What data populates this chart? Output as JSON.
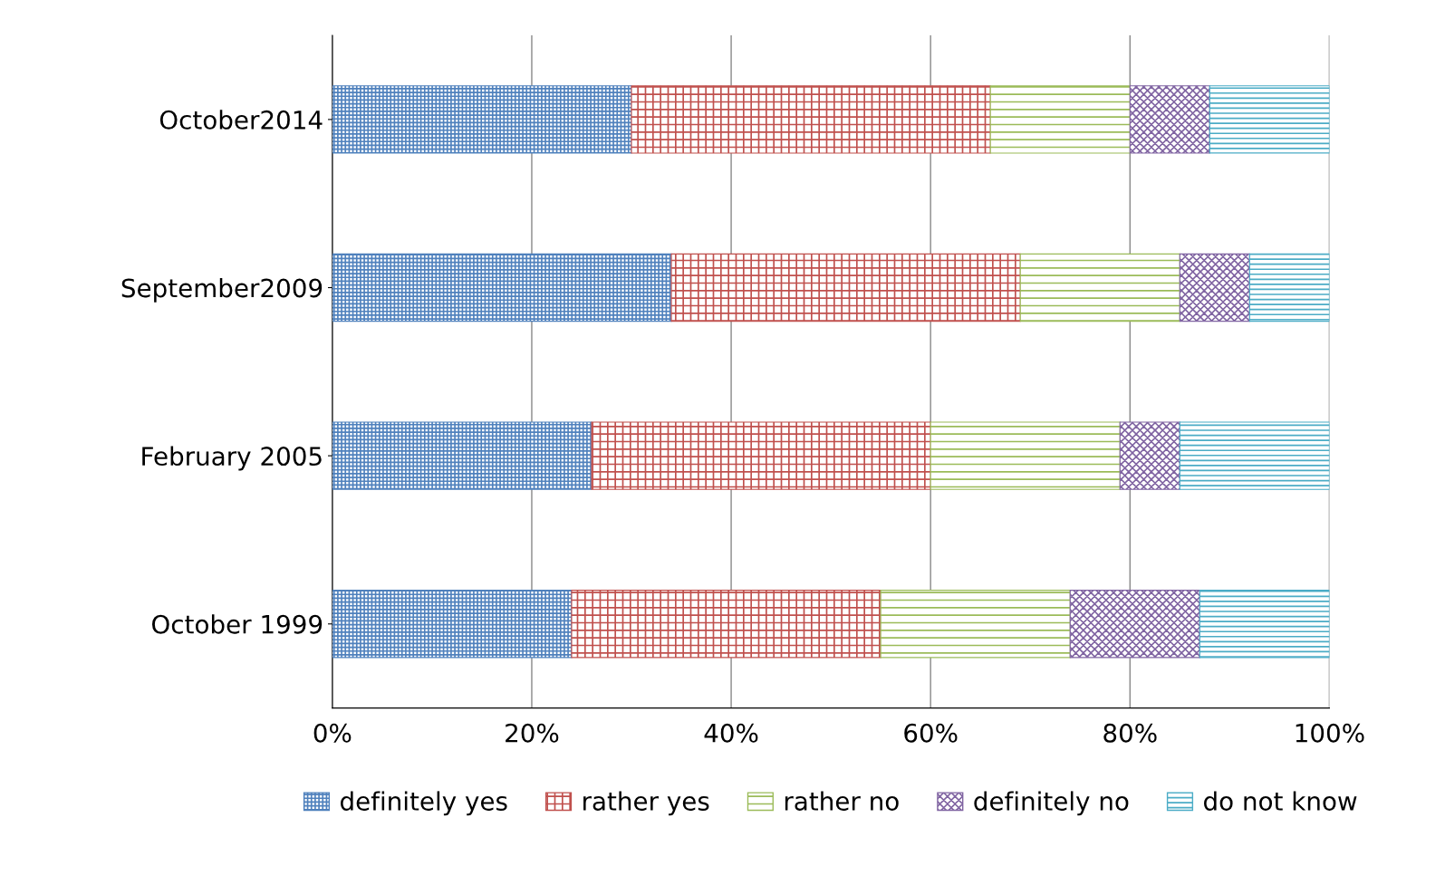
{
  "chart_data": {
    "type": "bar",
    "orientation": "horizontal",
    "stacked": true,
    "categories": [
      "October2014",
      "September2009",
      "February 2005",
      "October 1999"
    ],
    "series": [
      {
        "name": "definitely yes",
        "color": "#4f81bd",
        "values": [
          30,
          34,
          26,
          24
        ]
      },
      {
        "name": "rather yes",
        "color": "#c0504d",
        "values": [
          36,
          35,
          34,
          31
        ]
      },
      {
        "name": "rather no",
        "color": "#9bbb59",
        "values": [
          14,
          16,
          19,
          19
        ]
      },
      {
        "name": "definitely no",
        "color": "#8064a2",
        "values": [
          8,
          7,
          6,
          13
        ]
      },
      {
        "name": "do not know",
        "color": "#4bacc6",
        "values": [
          12,
          8,
          15,
          13
        ]
      }
    ],
    "xlim": [
      0,
      100
    ],
    "xticks": [
      {
        "value": 0,
        "label": "0%"
      },
      {
        "value": 20,
        "label": "20%"
      },
      {
        "value": 40,
        "label": "40%"
      },
      {
        "value": 60,
        "label": "60%"
      },
      {
        "value": 80,
        "label": "80%"
      },
      {
        "value": 100,
        "label": "100%"
      }
    ],
    "grid": "x",
    "legend": "bottom"
  }
}
